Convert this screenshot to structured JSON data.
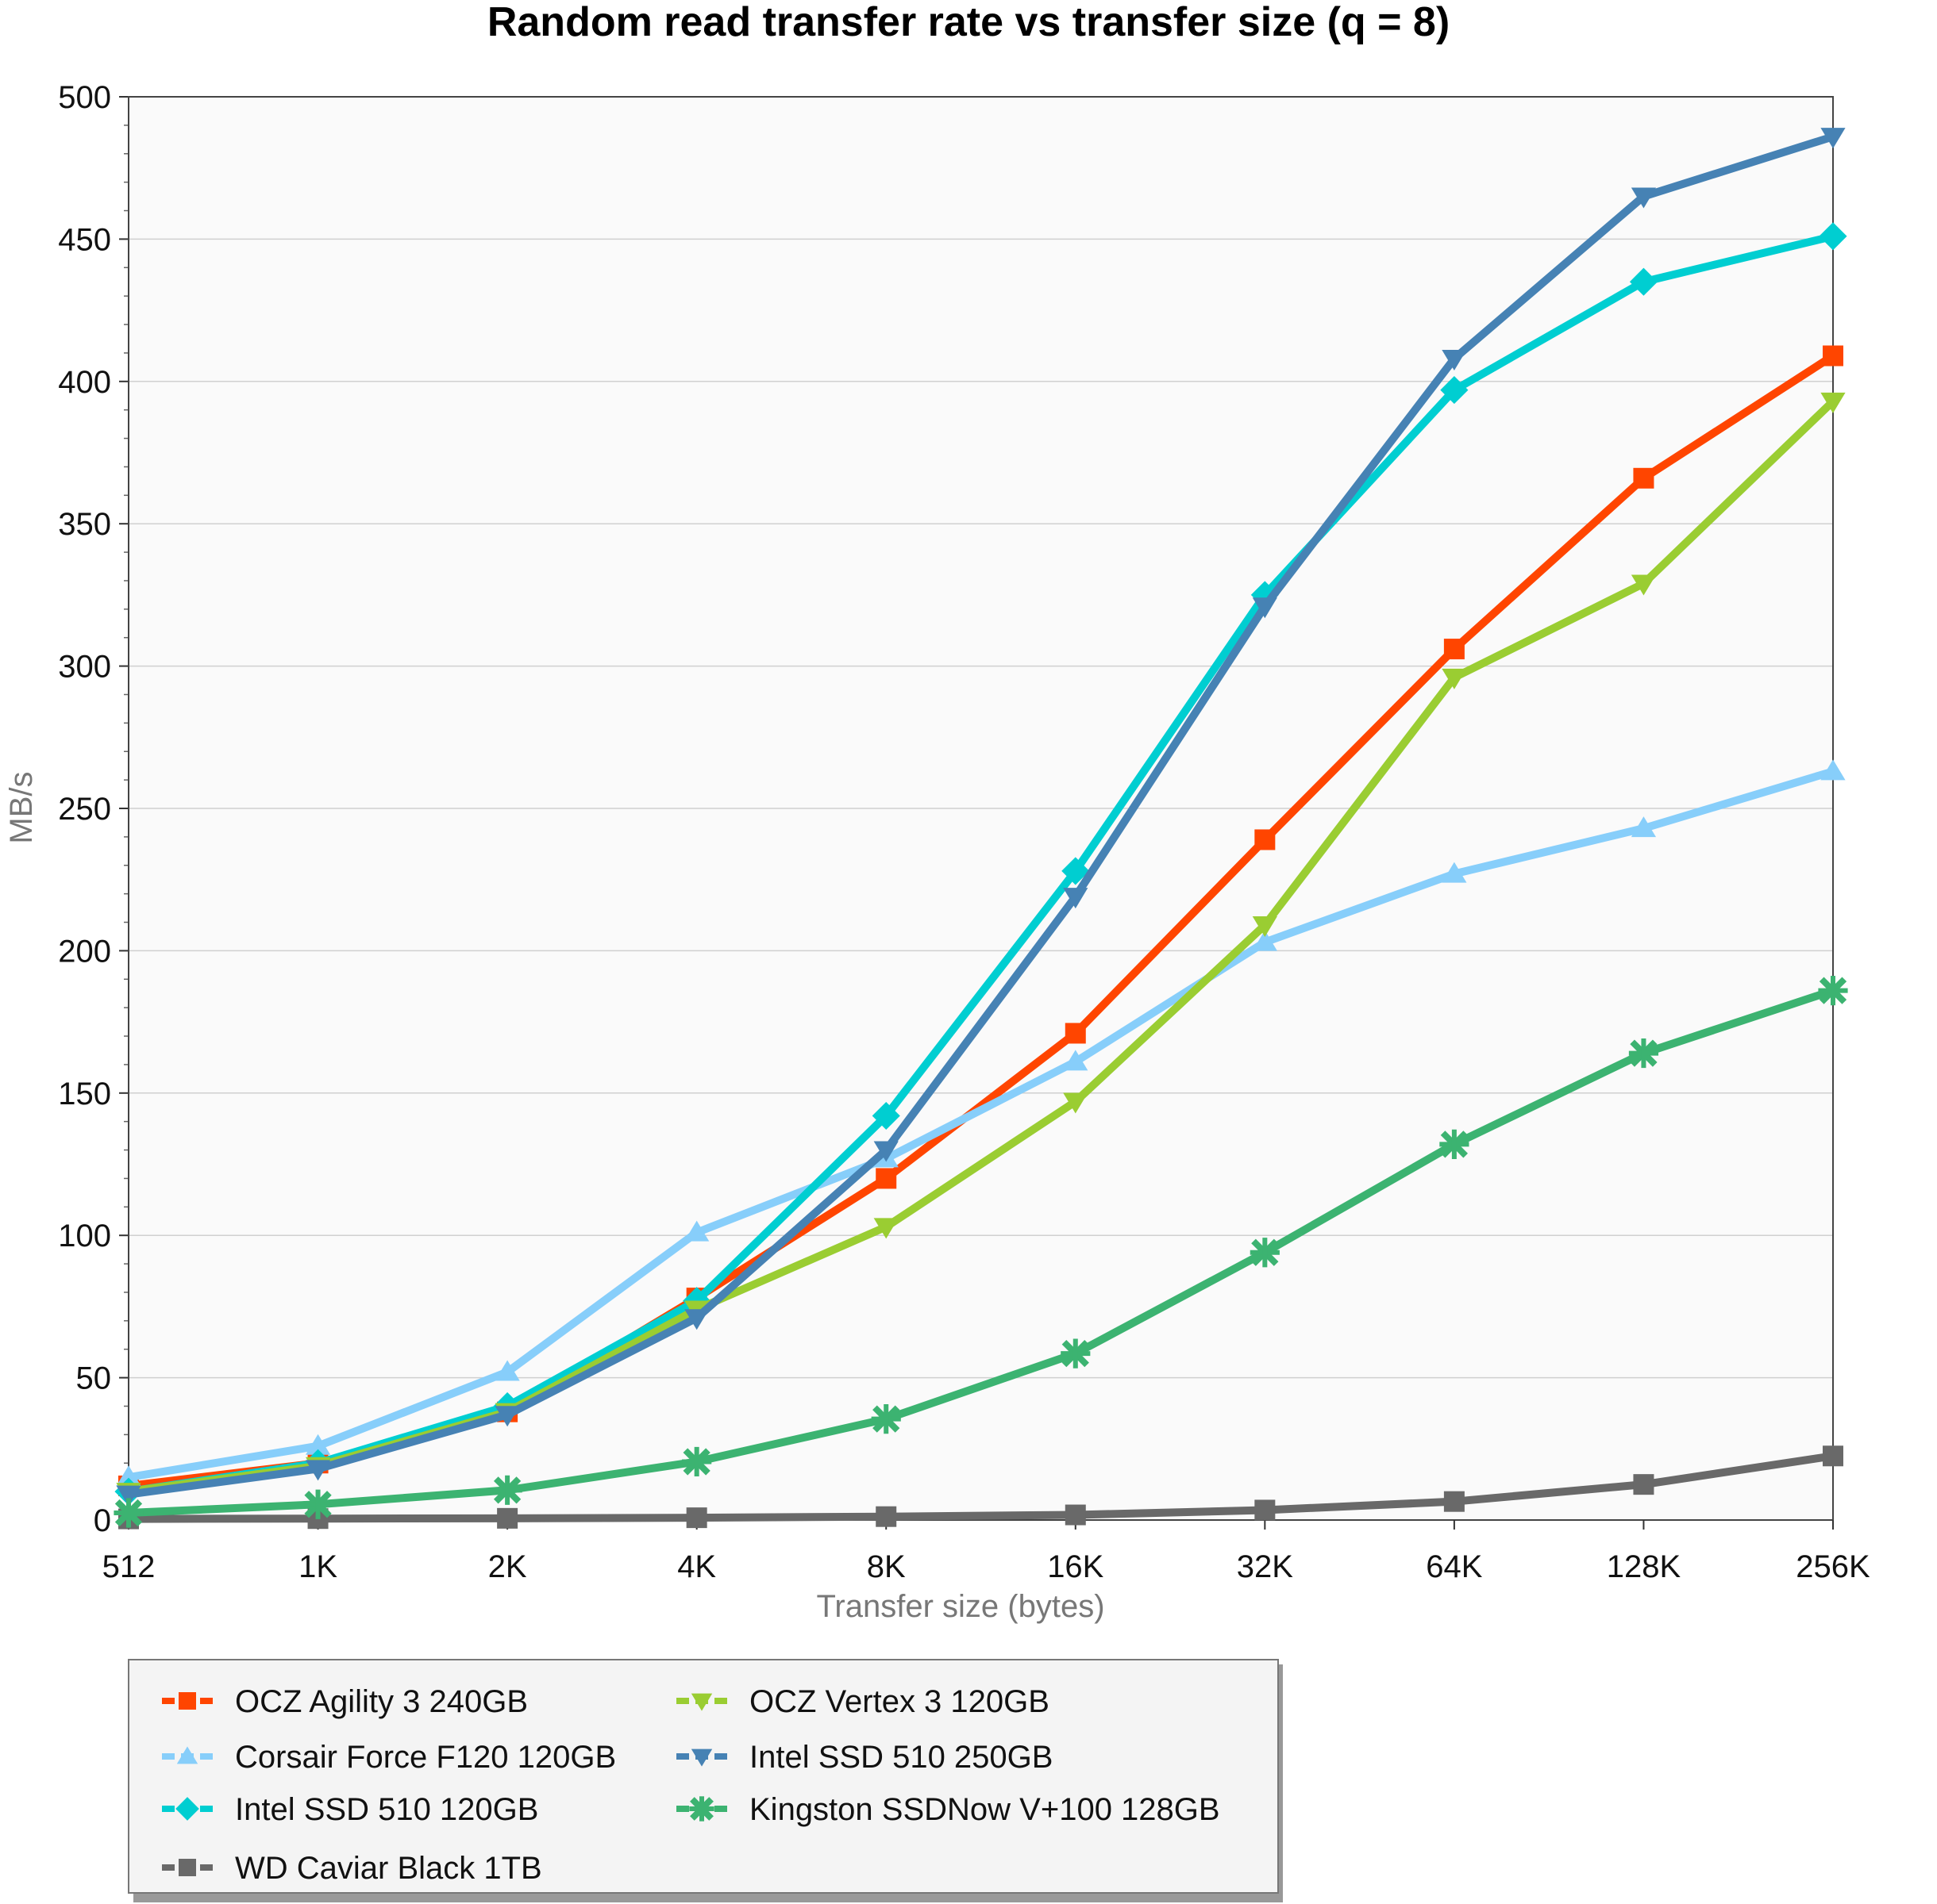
{
  "chart_data": {
    "type": "line",
    "title": "Random read transfer rate vs transfer size (q = 8)",
    "xlabel": "Transfer size (bytes)",
    "ylabel": "MB/s",
    "ylim": [
      0,
      500
    ],
    "yticks": [
      0,
      50,
      100,
      150,
      200,
      250,
      300,
      350,
      400,
      450,
      500
    ],
    "grid": true,
    "legend_position": "bottom-left",
    "categories": [
      "512",
      "1K",
      "2K",
      "4K",
      "8K",
      "16K",
      "32K",
      "64K",
      "128K",
      "256K"
    ],
    "series": [
      {
        "name": "OCZ Agility 3 240GB",
        "color": "#ff4500",
        "marker": "square",
        "values": [
          12,
          20,
          38,
          78,
          120,
          171,
          239,
          306,
          366,
          409
        ]
      },
      {
        "name": "Corsair Force F120 120GB",
        "color": "#87cefa",
        "marker": "triangle-up",
        "values": [
          15,
          26,
          52,
          101,
          127,
          161,
          203,
          227,
          243,
          263
        ]
      },
      {
        "name": "Intel SSD 510 120GB",
        "color": "#00ced1",
        "marker": "diamond",
        "values": [
          10,
          20,
          40,
          77,
          142,
          228,
          325,
          397,
          435,
          451
        ]
      },
      {
        "name": "WD Caviar Black 1TB",
        "color": "#696969",
        "marker": "square",
        "values": [
          0.4,
          0.5,
          0.6,
          0.8,
          1.2,
          1.8,
          3.5,
          6.5,
          12.5,
          22.5
        ]
      },
      {
        "name": "OCZ Vertex 3 120GB",
        "color": "#9acd32",
        "marker": "triangle-down",
        "values": [
          10,
          19,
          38,
          74,
          103,
          147,
          209,
          296,
          329,
          393
        ]
      },
      {
        "name": "Intel SSD 510 250GB",
        "color": "#4682b4",
        "marker": "triangle-down",
        "values": [
          9,
          18,
          37,
          71,
          130,
          219,
          321,
          408,
          465,
          486
        ]
      },
      {
        "name": "Kingston SSDNow V+100 128GB",
        "color": "#3cb371",
        "marker": "star",
        "values": [
          2.5,
          5.5,
          10.5,
          20.5,
          35.5,
          58.5,
          94,
          132,
          164,
          186
        ]
      }
    ]
  }
}
